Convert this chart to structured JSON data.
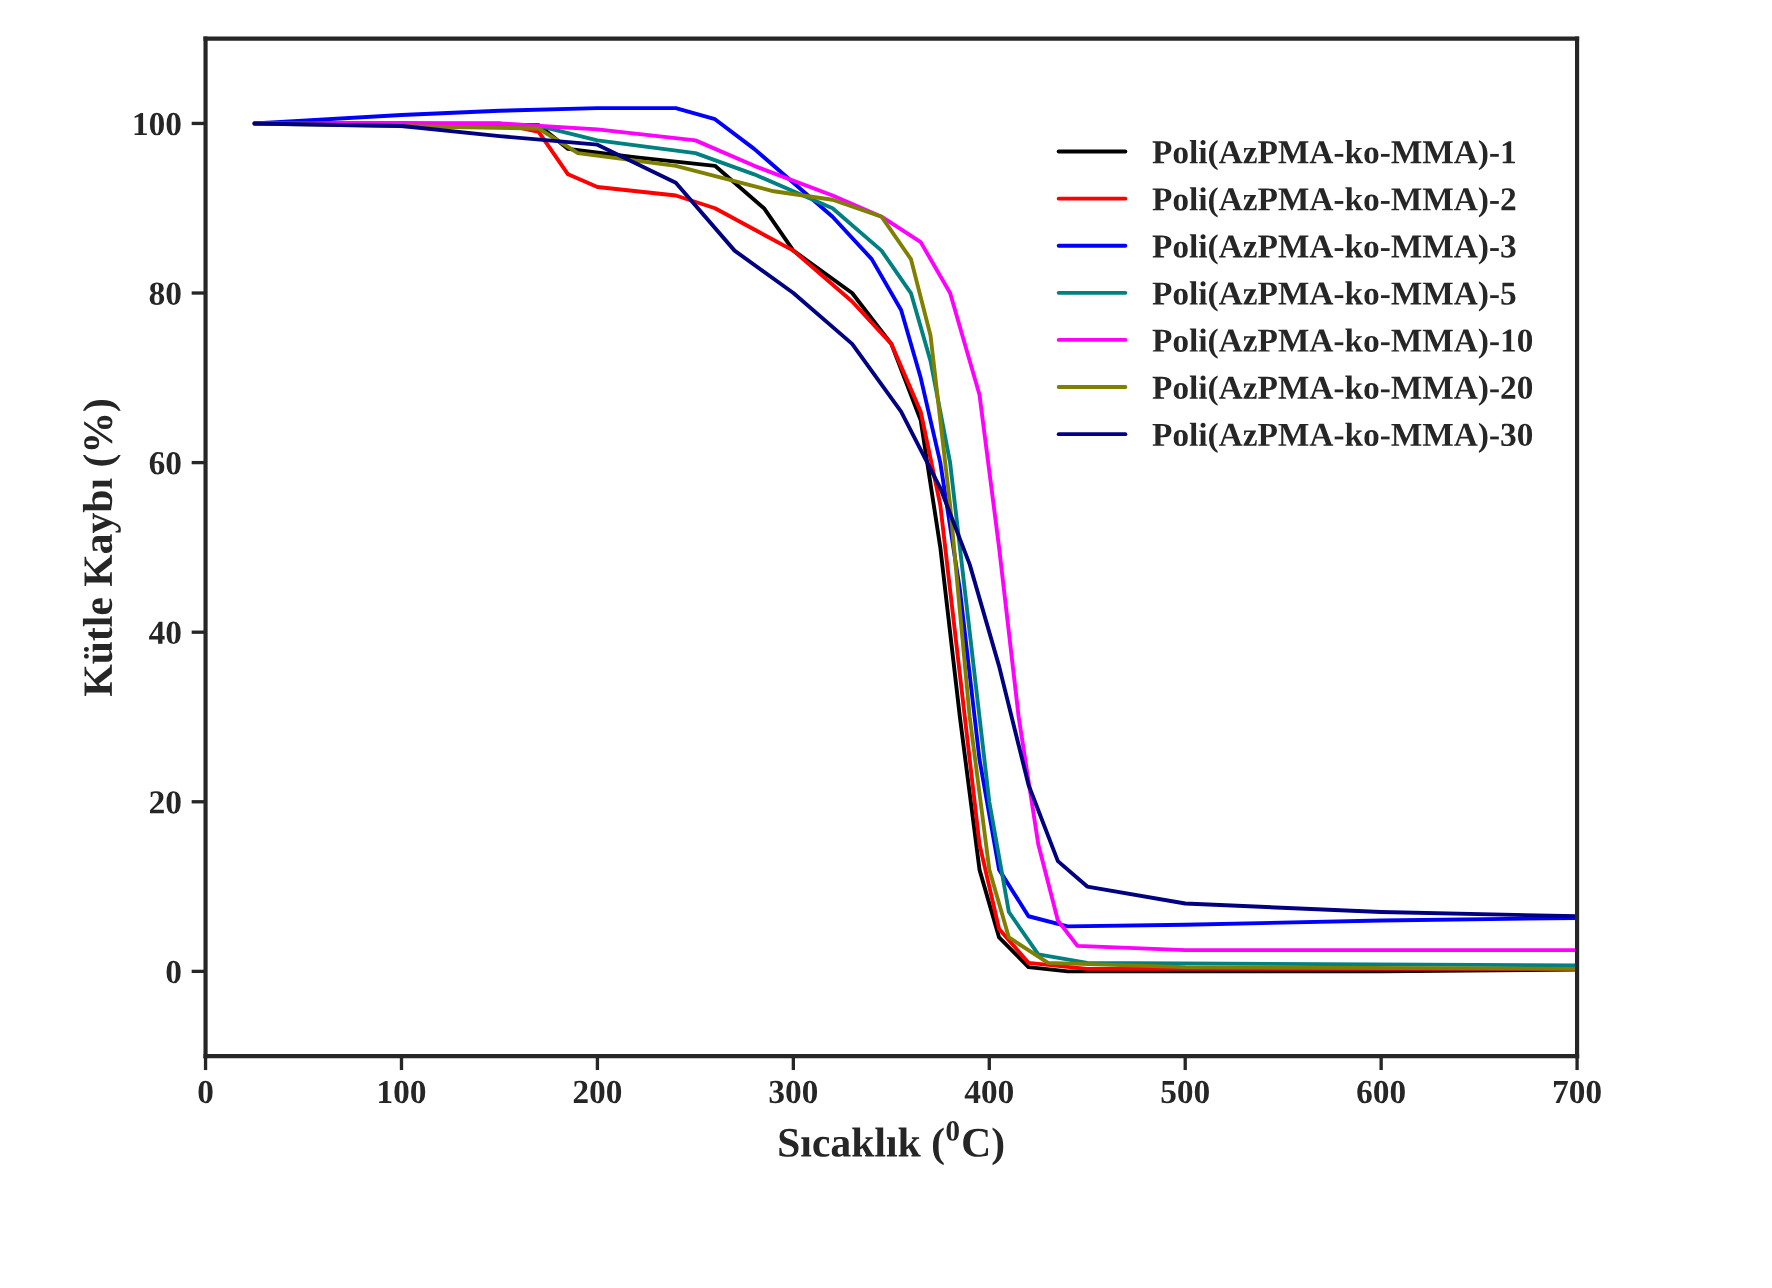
{
  "chart_data": {
    "type": "line",
    "xlabel": "Sıcaklık ($^{0}$C)",
    "ylabel": "Kütle Kaybı (%)",
    "xlim": [
      0,
      700
    ],
    "ylim": [
      -10,
      110
    ],
    "xticks": [
      0,
      100,
      200,
      300,
      400,
      500,
      600,
      700
    ],
    "yticks": [
      0,
      20,
      40,
      60,
      80,
      100
    ],
    "grid": false,
    "legend": "top right",
    "marker": "none",
    "line_style": "solid",
    "series": [
      {
        "name": "Poli(AzPMA-ko-MMA)-1",
        "color": "#000000",
        "x": [
          25,
          100,
          170,
          185,
          220,
          260,
          285,
          300,
          330,
          350,
          365,
          375,
          385,
          395,
          405,
          420,
          440,
          500,
          600,
          700
        ],
        "values": [
          100,
          100,
          99.8,
          97,
          96,
          95,
          90,
          85,
          80,
          74,
          65,
          50,
          30,
          12,
          4,
          0.5,
          0,
          0,
          0,
          0.2
        ]
      },
      {
        "name": "Poli(AzPMA-ko-MMA)-2",
        "color": "#ff0000",
        "x": [
          25,
          150,
          170,
          185,
          200,
          240,
          260,
          300,
          330,
          350,
          365,
          375,
          385,
          395,
          405,
          420,
          450,
          700
        ],
        "values": [
          100,
          100,
          99,
          94,
          92.5,
          91.5,
          90,
          85,
          79,
          74,
          66,
          55,
          35,
          15,
          5,
          1,
          0.3,
          0.3
        ]
      },
      {
        "name": "Poli(AzPMA-ko-MMA)-3",
        "color": "#0000ff",
        "x": [
          25,
          100,
          150,
          200,
          240,
          260,
          280,
          300,
          320,
          340,
          355,
          365,
          375,
          385,
          395,
          405,
          420,
          440,
          500,
          600,
          700
        ],
        "values": [
          100,
          101,
          101.5,
          101.8,
          101.8,
          100.5,
          97,
          93,
          89,
          84,
          78,
          70,
          60,
          45,
          25,
          12,
          6.5,
          5.3,
          5.5,
          6,
          6.3
        ]
      },
      {
        "name": "Poli(AzPMA-ko-MMA)-5",
        "color": "#008080",
        "x": [
          25,
          170,
          200,
          250,
          280,
          320,
          345,
          360,
          370,
          380,
          390,
          400,
          410,
          425,
          450,
          700
        ],
        "values": [
          100,
          99.7,
          98,
          96.5,
          94,
          90,
          85,
          80,
          72,
          60,
          40,
          20,
          7,
          2,
          1,
          0.7
        ]
      },
      {
        "name": "Poli(AzPMA-ko-MMA)-10",
        "color": "#ff00ff",
        "x": [
          25,
          150,
          200,
          250,
          280,
          320,
          345,
          365,
          380,
          395,
          405,
          415,
          425,
          435,
          445,
          500,
          700
        ],
        "values": [
          100,
          100,
          99.3,
          98,
          95,
          91.5,
          89,
          86,
          80,
          68,
          50,
          30,
          15,
          6,
          3,
          2.5,
          2.5
        ]
      },
      {
        "name": "Poli(AzPMA-ko-MMA)-20",
        "color": "#808000",
        "x": [
          25,
          170,
          190,
          240,
          290,
          320,
          345,
          360,
          370,
          380,
          390,
          400,
          410,
          430,
          500,
          700
        ],
        "values": [
          100,
          99.4,
          96.5,
          95,
          92,
          91,
          89,
          84,
          75,
          55,
          30,
          12,
          4,
          1,
          0.5,
          0.3
        ]
      },
      {
        "name": "Poli(AzPMA-ko-MMA)-30",
        "color": "#000080",
        "x": [
          25,
          100,
          150,
          200,
          240,
          270,
          300,
          330,
          355,
          375,
          390,
          405,
          420,
          435,
          450,
          500,
          600,
          700
        ],
        "values": [
          100,
          99.7,
          98.5,
          97.5,
          93,
          85,
          80,
          74,
          66,
          57,
          48,
          36,
          22,
          13,
          10,
          8,
          7,
          6.5
        ]
      }
    ]
  }
}
